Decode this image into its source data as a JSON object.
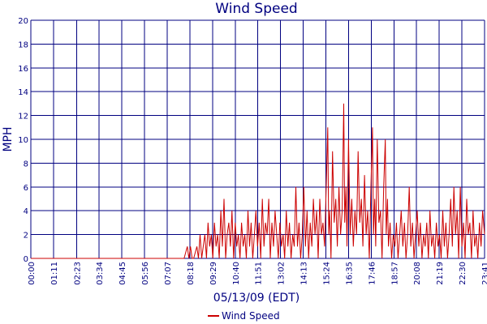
{
  "chart_data": {
    "type": "line",
    "title": "Wind Speed",
    "xlabel": "05/13/09 (EDT)",
    "ylabel": "MPH",
    "ylim": [
      0,
      20
    ],
    "yticks": [
      0,
      2,
      4,
      6,
      8,
      10,
      12,
      14,
      16,
      18,
      20
    ],
    "xlim": [
      "00:00",
      "23:41"
    ],
    "xticks": [
      "00:00",
      "01:11",
      "02:23",
      "03:34",
      "04:45",
      "05:56",
      "07:07",
      "08:18",
      "09:29",
      "10:40",
      "11:51",
      "13:02",
      "14:13",
      "15:24",
      "16:35",
      "17:46",
      "18:57",
      "20:08",
      "21:19",
      "22:30",
      "23:41"
    ],
    "grid": true,
    "legend_position": "bottom",
    "series": [
      {
        "name": "Wind Speed",
        "color": "#cc0000",
        "points": [
          [
            "00:00",
            0
          ],
          [
            "01:00",
            0
          ],
          [
            "02:00",
            0
          ],
          [
            "03:00",
            0
          ],
          [
            "04:00",
            0
          ],
          [
            "05:00",
            0
          ],
          [
            "06:00",
            0
          ],
          [
            "07:00",
            0
          ],
          [
            "07:30",
            0
          ],
          [
            "08:00",
            0
          ],
          [
            "08:10",
            1
          ],
          [
            "08:15",
            0
          ],
          [
            "08:20",
            1
          ],
          [
            "08:25",
            0
          ],
          [
            "08:30",
            0
          ],
          [
            "08:40",
            1
          ],
          [
            "08:45",
            0
          ],
          [
            "08:50",
            2
          ],
          [
            "08:55",
            0
          ],
          [
            "09:00",
            1
          ],
          [
            "09:05",
            2
          ],
          [
            "09:10",
            0
          ],
          [
            "09:15",
            3
          ],
          [
            "09:20",
            1
          ],
          [
            "09:25",
            2
          ],
          [
            "09:30",
            0
          ],
          [
            "09:35",
            3
          ],
          [
            "09:40",
            1
          ],
          [
            "09:45",
            2
          ],
          [
            "09:50",
            0
          ],
          [
            "09:55",
            4
          ],
          [
            "10:00",
            1
          ],
          [
            "10:05",
            5
          ],
          [
            "10:10",
            0
          ],
          [
            "10:15",
            2
          ],
          [
            "10:20",
            3
          ],
          [
            "10:25",
            1
          ],
          [
            "10:30",
            4
          ],
          [
            "10:35",
            0
          ],
          [
            "10:40",
            3
          ],
          [
            "10:45",
            1
          ],
          [
            "10:50",
            2
          ],
          [
            "10:55",
            0
          ],
          [
            "11:00",
            3
          ],
          [
            "11:05",
            1
          ],
          [
            "11:10",
            2
          ],
          [
            "11:15",
            0
          ],
          [
            "11:20",
            4
          ],
          [
            "11:25",
            1
          ],
          [
            "11:30",
            3
          ],
          [
            "11:35",
            0
          ],
          [
            "11:40",
            2
          ],
          [
            "11:45",
            4
          ],
          [
            "11:50",
            1
          ],
          [
            "11:55",
            3
          ],
          [
            "12:00",
            0
          ],
          [
            "12:05",
            5
          ],
          [
            "12:10",
            1
          ],
          [
            "12:15",
            3
          ],
          [
            "12:20",
            2
          ],
          [
            "12:25",
            5
          ],
          [
            "12:30",
            0
          ],
          [
            "12:35",
            3
          ],
          [
            "12:40",
            1
          ],
          [
            "12:45",
            4
          ],
          [
            "12:50",
            2
          ],
          [
            "12:55",
            0
          ],
          [
            "13:00",
            3
          ],
          [
            "13:05",
            1
          ],
          [
            "13:10",
            2
          ],
          [
            "13:15",
            0
          ],
          [
            "13:20",
            4
          ],
          [
            "13:25",
            1
          ],
          [
            "13:30",
            3
          ],
          [
            "13:35",
            0
          ],
          [
            "13:40",
            2
          ],
          [
            "13:45",
            1
          ],
          [
            "13:50",
            6
          ],
          [
            "13:55",
            1
          ],
          [
            "14:00",
            3
          ],
          [
            "14:05",
            0
          ],
          [
            "14:10",
            2
          ],
          [
            "14:15",
            6
          ],
          [
            "14:20",
            1
          ],
          [
            "14:25",
            4
          ],
          [
            "14:30",
            0
          ],
          [
            "14:35",
            3
          ],
          [
            "14:40",
            1
          ],
          [
            "14:45",
            5
          ],
          [
            "14:50",
            2
          ],
          [
            "14:55",
            4
          ],
          [
            "15:00",
            0
          ],
          [
            "15:05",
            5
          ],
          [
            "15:10",
            2
          ],
          [
            "15:15",
            3
          ],
          [
            "15:20",
            1
          ],
          [
            "15:25",
            6
          ],
          [
            "15:30",
            11
          ],
          [
            "15:33",
            2
          ],
          [
            "15:36",
            4
          ],
          [
            "15:40",
            0
          ],
          [
            "15:45",
            9
          ],
          [
            "15:50",
            3
          ],
          [
            "15:55",
            5
          ],
          [
            "16:00",
            1
          ],
          [
            "16:05",
            6
          ],
          [
            "16:10",
            2
          ],
          [
            "16:15",
            4
          ],
          [
            "16:20",
            13
          ],
          [
            "16:23",
            3
          ],
          [
            "16:27",
            6
          ],
          [
            "16:30",
            1
          ],
          [
            "16:35",
            10
          ],
          [
            "16:40",
            2
          ],
          [
            "16:45",
            5
          ],
          [
            "16:50",
            1
          ],
          [
            "16:55",
            4
          ],
          [
            "17:00",
            2
          ],
          [
            "17:05",
            9
          ],
          [
            "17:10",
            3
          ],
          [
            "17:15",
            5
          ],
          [
            "17:20",
            1
          ],
          [
            "17:25",
            7
          ],
          [
            "17:30",
            2
          ],
          [
            "17:35",
            4
          ],
          [
            "17:40",
            0
          ],
          [
            "17:45",
            6
          ],
          [
            "17:50",
            11
          ],
          [
            "17:53",
            2
          ],
          [
            "17:57",
            5
          ],
          [
            "18:00",
            1
          ],
          [
            "18:05",
            10
          ],
          [
            "18:10",
            3
          ],
          [
            "18:15",
            4
          ],
          [
            "18:20",
            0
          ],
          [
            "18:25",
            6
          ],
          [
            "18:30",
            10
          ],
          [
            "18:33",
            2
          ],
          [
            "18:37",
            5
          ],
          [
            "18:40",
            1
          ],
          [
            "18:45",
            3
          ],
          [
            "18:50",
            0
          ],
          [
            "18:55",
            2
          ],
          [
            "19:00",
            1
          ],
          [
            "19:05",
            3
          ],
          [
            "19:10",
            0
          ],
          [
            "19:15",
            2
          ],
          [
            "19:20",
            4
          ],
          [
            "19:25",
            1
          ],
          [
            "19:30",
            3
          ],
          [
            "19:35",
            0
          ],
          [
            "19:40",
            2
          ],
          [
            "19:45",
            6
          ],
          [
            "19:50",
            1
          ],
          [
            "19:55",
            3
          ],
          [
            "20:00",
            0
          ],
          [
            "20:05",
            2
          ],
          [
            "20:10",
            4
          ],
          [
            "20:15",
            1
          ],
          [
            "20:20",
            3
          ],
          [
            "20:25",
            0
          ],
          [
            "20:30",
            2
          ],
          [
            "20:35",
            1
          ],
          [
            "20:40",
            3
          ],
          [
            "20:45",
            0
          ],
          [
            "20:50",
            4
          ],
          [
            "20:55",
            1
          ],
          [
            "21:00",
            2
          ],
          [
            "21:05",
            0
          ],
          [
            "21:10",
            3
          ],
          [
            "21:15",
            1
          ],
          [
            "21:20",
            2
          ],
          [
            "21:25",
            0
          ],
          [
            "21:30",
            4
          ],
          [
            "21:35",
            1
          ],
          [
            "21:40",
            3
          ],
          [
            "21:45",
            0
          ],
          [
            "21:50",
            2
          ],
          [
            "21:55",
            5
          ],
          [
            "22:00",
            1
          ],
          [
            "22:05",
            6
          ],
          [
            "22:10",
            2
          ],
          [
            "22:15",
            4
          ],
          [
            "22:20",
            0
          ],
          [
            "22:25",
            6
          ],
          [
            "22:30",
            1
          ],
          [
            "22:35",
            3
          ],
          [
            "22:40",
            0
          ],
          [
            "22:45",
            5
          ],
          [
            "22:50",
            2
          ],
          [
            "22:55",
            3
          ],
          [
            "23:00",
            0
          ],
          [
            "23:05",
            4
          ],
          [
            "23:10",
            1
          ],
          [
            "23:15",
            2
          ],
          [
            "23:20",
            0
          ],
          [
            "23:25",
            3
          ],
          [
            "23:30",
            1
          ],
          [
            "23:35",
            4
          ],
          [
            "23:41",
            2
          ]
        ]
      }
    ]
  }
}
